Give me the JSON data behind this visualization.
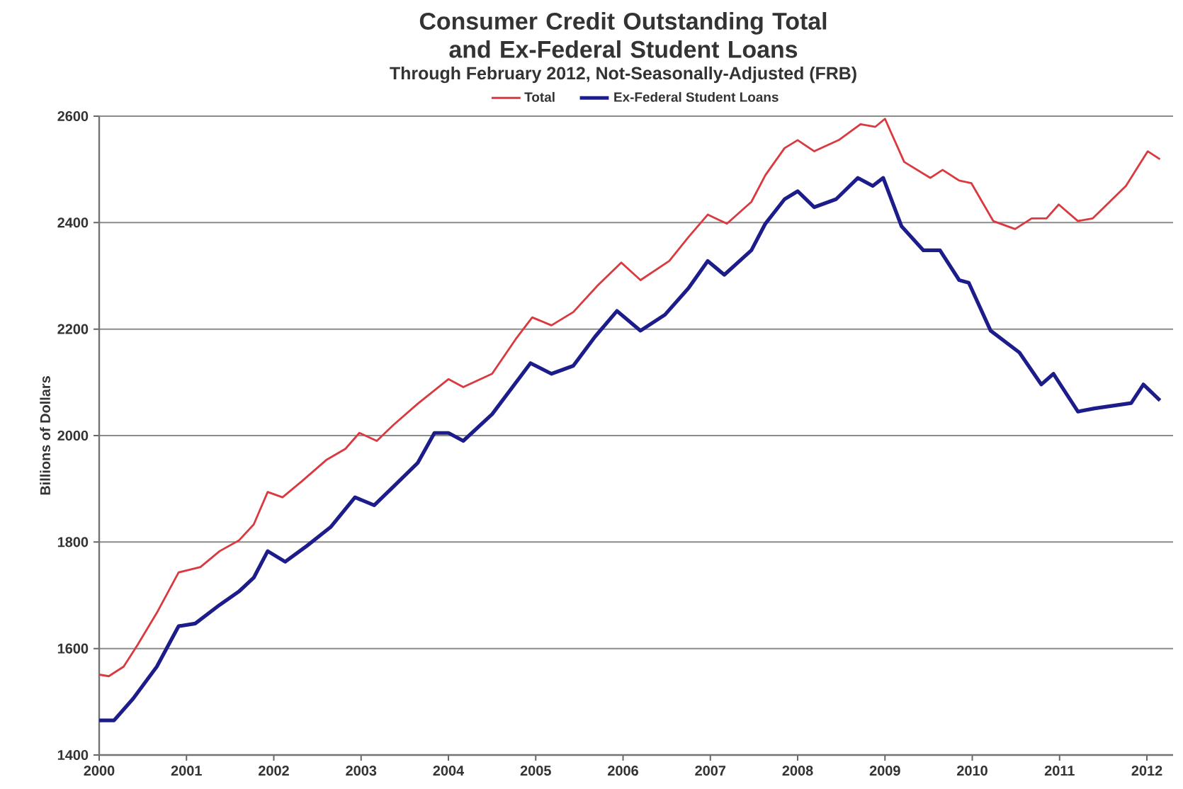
{
  "chart_data": {
    "type": "line",
    "title": "Consumer Credit Outstanding Total and Ex-Federal Student Loans",
    "subtitle": "Through February 2012, Not-Seasonally-Adjusted (FRB)",
    "ylabel": "Billions of Dollars",
    "xlim": [
      2000,
      2012.3
    ],
    "xticks": [
      2000,
      2001,
      2002,
      2003,
      2004,
      2005,
      2006,
      2007,
      2008,
      2009,
      2010,
      2011,
      2012
    ],
    "ylim": [
      1400,
      2600
    ],
    "yticks": [
      1400,
      1600,
      1800,
      2000,
      2200,
      2400,
      2600
    ],
    "grid": "y",
    "legend": "top",
    "line_style": "solid",
    "marker": "none",
    "series": [
      {
        "name": "Total",
        "color": "#d9393f",
        "x": [
          2000.0,
          2000.11,
          2000.28,
          2000.44,
          2000.66,
          2000.91,
          2001.16,
          2001.38,
          2001.6,
          2001.77,
          2001.93,
          2002.1,
          2002.32,
          2002.6,
          2002.82,
          2002.98,
          2003.18,
          2003.37,
          2003.65,
          2004.0,
          2004.17,
          2004.5,
          2004.77,
          2004.96,
          2005.18,
          2005.43,
          2005.71,
          2005.98,
          2006.2,
          2006.53,
          2006.75,
          2006.97,
          2007.19,
          2007.47,
          2007.63,
          2007.85,
          2008.0,
          2008.19,
          2008.47,
          2008.72,
          2008.89,
          2009.0,
          2009.22,
          2009.52,
          2009.66,
          2009.85,
          2009.99,
          2010.24,
          2010.49,
          2010.68,
          2010.85,
          2010.99,
          2011.21,
          2011.38,
          2011.76,
          2012.01,
          2012.15
        ],
        "values": [
          1551,
          1548,
          1566,
          1607,
          1667,
          1743,
          1753,
          1783,
          1803,
          1833,
          1894,
          1884,
          1914,
          1954,
          1975,
          2005,
          1990,
          2020,
          2060,
          2106,
          2091,
          2116,
          2181,
          2222,
          2207,
          2232,
          2282,
          2325,
          2292,
          2328,
          2373,
          2415,
          2398,
          2439,
          2489,
          2540,
          2555,
          2534,
          2555,
          2585,
          2580,
          2595,
          2514,
          2484,
          2499,
          2479,
          2474,
          2403,
          2388,
          2408,
          2408,
          2434,
          2403,
          2408,
          2469,
          2534,
          2519
        ]
      },
      {
        "name": "Ex-Federal Student Loans",
        "color": "#1c1c8a",
        "x": [
          2000.0,
          2000.17,
          2000.39,
          2000.66,
          2000.91,
          2001.1,
          2001.38,
          2001.6,
          2001.77,
          2001.93,
          2002.13,
          2002.38,
          2002.65,
          2002.93,
          2003.15,
          2003.37,
          2003.65,
          2003.84,
          2004.0,
          2004.17,
          2004.5,
          2004.94,
          2005.18,
          2005.43,
          2005.68,
          2005.93,
          2006.2,
          2006.48,
          2006.75,
          2006.97,
          2007.16,
          2007.47,
          2007.63,
          2007.85,
          2008.0,
          2008.19,
          2008.44,
          2008.69,
          2008.86,
          2008.98,
          2009.19,
          2009.44,
          2009.63,
          2009.85,
          2009.96,
          2010.21,
          2010.54,
          2010.79,
          2010.93,
          2011.21,
          2011.4,
          2011.82,
          2011.96,
          2012.15
        ],
        "values": [
          1465,
          1465,
          1506,
          1566,
          1642,
          1647,
          1682,
          1707,
          1733,
          1783,
          1763,
          1793,
          1828,
          1884,
          1869,
          1904,
          1949,
          2005,
          2005,
          1990,
          2040,
          2136,
          2116,
          2131,
          2186,
          2234,
          2197,
          2227,
          2277,
          2328,
          2302,
          2348,
          2398,
          2444,
          2459,
          2429,
          2444,
          2484,
          2469,
          2484,
          2393,
          2348,
          2348,
          2292,
          2287,
          2197,
          2156,
          2096,
          2116,
          2045,
          2051,
          2061,
          2096,
          2066
        ]
      }
    ]
  }
}
